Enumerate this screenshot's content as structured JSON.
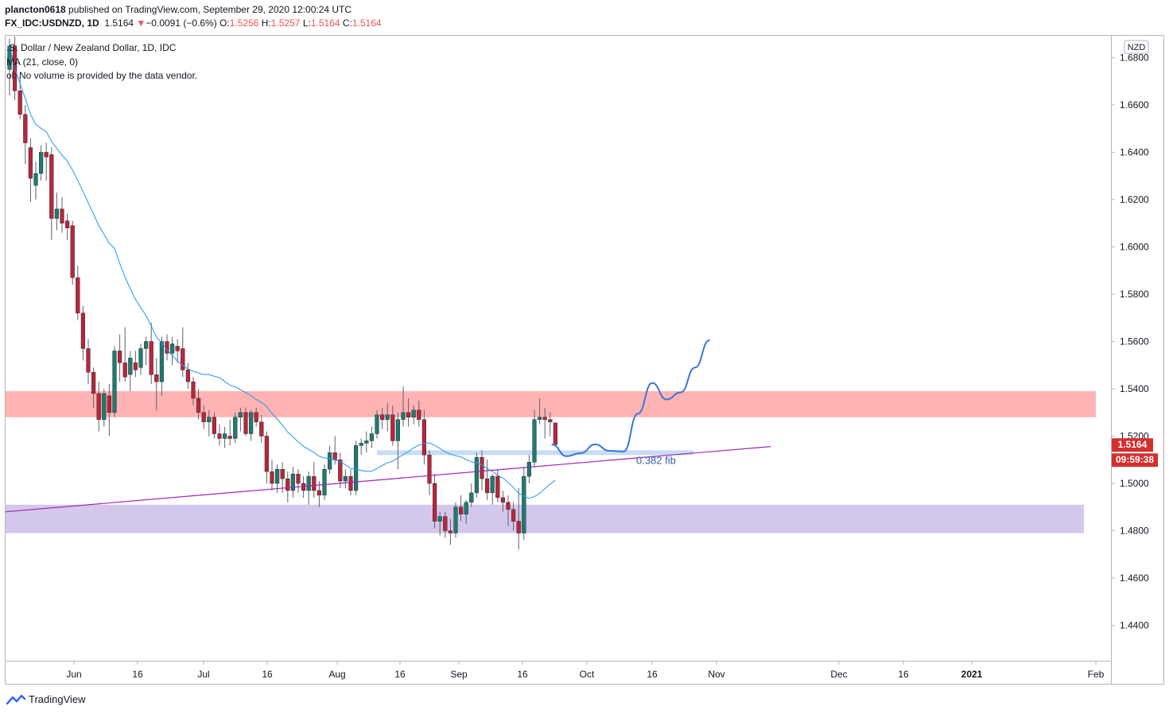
{
  "header": {
    "user": "plancton0618",
    "published_text": " published on TradingView.com, September 29, 2020 12:00:24 UTC",
    "symbol": "FX_IDC:USDNZD, 1D",
    "last": "1.5164",
    "change_arrow": "▼",
    "change": "−0.0091 (−0.6%)",
    "o_label": "O:",
    "o_value": "1.5256",
    "h_label": "H:",
    "h_value": "1.5257",
    "l_label": "L:",
    "l_value": "1.5164",
    "c_label": "C:",
    "c_value": "1.5164"
  },
  "legend": {
    "title": ".S. Dollar / New Zealand Dollar, 1D, IDC",
    "ma": "MA (21, close, 0)",
    "vol": "ol: No volume is provided by the data vendor."
  },
  "price_axis": {
    "currency": "NZD",
    "ticks": [
      "1.6800",
      "1.6600",
      "1.6400",
      "1.6200",
      "1.6000",
      "1.5800",
      "1.5600",
      "1.5400",
      "1.5200",
      "1.5000",
      "1.4800",
      "1.4600",
      "1.4400"
    ],
    "last_price_label": "1.5164",
    "countdown_label": "09:59:38"
  },
  "time_axis": {
    "ticks": [
      "Jun",
      "16",
      "Jul",
      "16",
      "Aug",
      "16",
      "Sep",
      "16",
      "Oct",
      "16",
      "Nov",
      "Dec",
      "16",
      "2021",
      "Feb"
    ]
  },
  "annotations": {
    "fib_label": "0.382 fib"
  },
  "colors": {
    "up": "#26a69a",
    "down": "#ef5350",
    "up_candle": "#1f7a70",
    "down_candle": "#b7263b",
    "ma": "#2196f3",
    "resistance_zone": "#ffb3b3",
    "support_zone": "#d4c7ec",
    "fib_zone": "#c8dcf6",
    "trendline": "#9c27b0",
    "projection": "#3a76d6"
  },
  "footer": {
    "brand": "TradingView"
  },
  "chart_data": {
    "type": "candlestick",
    "symbol": "USDNZD",
    "interval": "1D",
    "ylim": [
      1.43,
      1.69
    ],
    "y_ticks": [
      1.68,
      1.66,
      1.64,
      1.62,
      1.6,
      1.58,
      1.56,
      1.54,
      1.52,
      1.5,
      1.48,
      1.46,
      1.44
    ],
    "x_ticks": [
      "Jun",
      "16",
      "Jul",
      "16",
      "Aug",
      "16",
      "Sep",
      "16",
      "Oct",
      "16",
      "Nov",
      "Dec",
      "16",
      "2021",
      "Feb"
    ],
    "candles": [
      {
        "o": 1.675,
        "h": 1.688,
        "l": 1.664,
        "c": 1.685
      },
      {
        "o": 1.685,
        "h": 1.689,
        "l": 1.662,
        "c": 1.666
      },
      {
        "o": 1.666,
        "h": 1.672,
        "l": 1.654,
        "c": 1.656
      },
      {
        "o": 1.656,
        "h": 1.66,
        "l": 1.635,
        "c": 1.644
      },
      {
        "o": 1.642,
        "h": 1.646,
        "l": 1.619,
        "c": 1.629
      },
      {
        "o": 1.626,
        "h": 1.636,
        "l": 1.62,
        "c": 1.631
      },
      {
        "o": 1.631,
        "h": 1.643,
        "l": 1.628,
        "c": 1.64
      },
      {
        "o": 1.64,
        "h": 1.644,
        "l": 1.628,
        "c": 1.638
      },
      {
        "o": 1.639,
        "h": 1.642,
        "l": 1.603,
        "c": 1.612
      },
      {
        "o": 1.612,
        "h": 1.623,
        "l": 1.607,
        "c": 1.616
      },
      {
        "o": 1.616,
        "h": 1.621,
        "l": 1.606,
        "c": 1.61
      },
      {
        "o": 1.611,
        "h": 1.614,
        "l": 1.603,
        "c": 1.608
      },
      {
        "o": 1.609,
        "h": 1.611,
        "l": 1.584,
        "c": 1.587
      },
      {
        "o": 1.587,
        "h": 1.592,
        "l": 1.569,
        "c": 1.572
      },
      {
        "o": 1.572,
        "h": 1.575,
        "l": 1.552,
        "c": 1.557
      },
      {
        "o": 1.557,
        "h": 1.561,
        "l": 1.542,
        "c": 1.547
      },
      {
        "o": 1.547,
        "h": 1.549,
        "l": 1.532,
        "c": 1.538
      },
      {
        "o": 1.538,
        "h": 1.543,
        "l": 1.522,
        "c": 1.527
      },
      {
        "o": 1.527,
        "h": 1.54,
        "l": 1.524,
        "c": 1.538
      },
      {
        "o": 1.537,
        "h": 1.542,
        "l": 1.52,
        "c": 1.53
      },
      {
        "o": 1.53,
        "h": 1.558,
        "l": 1.528,
        "c": 1.556
      },
      {
        "o": 1.556,
        "h": 1.563,
        "l": 1.543,
        "c": 1.551
      },
      {
        "o": 1.551,
        "h": 1.566,
        "l": 1.543,
        "c": 1.545
      },
      {
        "o": 1.546,
        "h": 1.556,
        "l": 1.539,
        "c": 1.553
      },
      {
        "o": 1.551,
        "h": 1.556,
        "l": 1.545,
        "c": 1.548
      },
      {
        "o": 1.549,
        "h": 1.559,
        "l": 1.546,
        "c": 1.557
      },
      {
        "o": 1.557,
        "h": 1.562,
        "l": 1.55,
        "c": 1.56
      },
      {
        "o": 1.56,
        "h": 1.568,
        "l": 1.542,
        "c": 1.546
      },
      {
        "o": 1.546,
        "h": 1.553,
        "l": 1.531,
        "c": 1.543
      },
      {
        "o": 1.543,
        "h": 1.562,
        "l": 1.537,
        "c": 1.56
      },
      {
        "o": 1.56,
        "h": 1.563,
        "l": 1.552,
        "c": 1.555
      },
      {
        "o": 1.555,
        "h": 1.562,
        "l": 1.55,
        "c": 1.559
      },
      {
        "o": 1.558,
        "h": 1.561,
        "l": 1.551,
        "c": 1.556
      },
      {
        "o": 1.557,
        "h": 1.566,
        "l": 1.545,
        "c": 1.548
      },
      {
        "o": 1.548,
        "h": 1.551,
        "l": 1.54,
        "c": 1.543
      },
      {
        "o": 1.543,
        "h": 1.545,
        "l": 1.533,
        "c": 1.536
      },
      {
        "o": 1.536,
        "h": 1.54,
        "l": 1.527,
        "c": 1.53
      },
      {
        "o": 1.53,
        "h": 1.533,
        "l": 1.523,
        "c": 1.526
      },
      {
        "o": 1.526,
        "h": 1.531,
        "l": 1.52,
        "c": 1.528
      },
      {
        "o": 1.528,
        "h": 1.53,
        "l": 1.519,
        "c": 1.521
      },
      {
        "o": 1.521,
        "h": 1.525,
        "l": 1.516,
        "c": 1.519
      },
      {
        "o": 1.519,
        "h": 1.524,
        "l": 1.515,
        "c": 1.521
      },
      {
        "o": 1.52,
        "h": 1.527,
        "l": 1.516,
        "c": 1.519
      },
      {
        "o": 1.519,
        "h": 1.53,
        "l": 1.517,
        "c": 1.528
      },
      {
        "o": 1.528,
        "h": 1.532,
        "l": 1.522,
        "c": 1.53
      },
      {
        "o": 1.53,
        "h": 1.532,
        "l": 1.52,
        "c": 1.521
      },
      {
        "o": 1.521,
        "h": 1.531,
        "l": 1.518,
        "c": 1.53
      },
      {
        "o": 1.53,
        "h": 1.532,
        "l": 1.524,
        "c": 1.526
      },
      {
        "o": 1.526,
        "h": 1.529,
        "l": 1.517,
        "c": 1.52
      },
      {
        "o": 1.52,
        "h": 1.522,
        "l": 1.5,
        "c": 1.505
      },
      {
        "o": 1.505,
        "h": 1.51,
        "l": 1.497,
        "c": 1.5
      },
      {
        "o": 1.5,
        "h": 1.508,
        "l": 1.496,
        "c": 1.506
      },
      {
        "o": 1.506,
        "h": 1.509,
        "l": 1.496,
        "c": 1.502
      },
      {
        "o": 1.502,
        "h": 1.505,
        "l": 1.492,
        "c": 1.497
      },
      {
        "o": 1.497,
        "h": 1.507,
        "l": 1.494,
        "c": 1.504
      },
      {
        "o": 1.504,
        "h": 1.506,
        "l": 1.496,
        "c": 1.5
      },
      {
        "o": 1.5,
        "h": 1.503,
        "l": 1.494,
        "c": 1.497
      },
      {
        "o": 1.497,
        "h": 1.505,
        "l": 1.491,
        "c": 1.503
      },
      {
        "o": 1.503,
        "h": 1.509,
        "l": 1.494,
        "c": 1.497
      },
      {
        "o": 1.497,
        "h": 1.501,
        "l": 1.49,
        "c": 1.495
      },
      {
        "o": 1.495,
        "h": 1.508,
        "l": 1.493,
        "c": 1.506
      },
      {
        "o": 1.506,
        "h": 1.516,
        "l": 1.504,
        "c": 1.513
      },
      {
        "o": 1.513,
        "h": 1.52,
        "l": 1.508,
        "c": 1.51
      },
      {
        "o": 1.51,
        "h": 1.513,
        "l": 1.498,
        "c": 1.501
      },
      {
        "o": 1.501,
        "h": 1.506,
        "l": 1.498,
        "c": 1.503
      },
      {
        "o": 1.503,
        "h": 1.506,
        "l": 1.495,
        "c": 1.497
      },
      {
        "o": 1.497,
        "h": 1.518,
        "l": 1.495,
        "c": 1.516
      },
      {
        "o": 1.516,
        "h": 1.519,
        "l": 1.512,
        "c": 1.517
      },
      {
        "o": 1.517,
        "h": 1.522,
        "l": 1.513,
        "c": 1.518
      },
      {
        "o": 1.518,
        "h": 1.524,
        "l": 1.515,
        "c": 1.521
      },
      {
        "o": 1.521,
        "h": 1.531,
        "l": 1.519,
        "c": 1.529
      },
      {
        "o": 1.529,
        "h": 1.532,
        "l": 1.523,
        "c": 1.527
      },
      {
        "o": 1.527,
        "h": 1.534,
        "l": 1.522,
        "c": 1.529
      },
      {
        "o": 1.529,
        "h": 1.533,
        "l": 1.516,
        "c": 1.518
      },
      {
        "o": 1.518,
        "h": 1.53,
        "l": 1.506,
        "c": 1.527
      },
      {
        "o": 1.527,
        "h": 1.541,
        "l": 1.524,
        "c": 1.53
      },
      {
        "o": 1.53,
        "h": 1.536,
        "l": 1.524,
        "c": 1.528
      },
      {
        "o": 1.528,
        "h": 1.533,
        "l": 1.525,
        "c": 1.531
      },
      {
        "o": 1.531,
        "h": 1.535,
        "l": 1.524,
        "c": 1.527
      },
      {
        "o": 1.527,
        "h": 1.531,
        "l": 1.508,
        "c": 1.512
      },
      {
        "o": 1.512,
        "h": 1.514,
        "l": 1.495,
        "c": 1.5
      },
      {
        "o": 1.5,
        "h": 1.504,
        "l": 1.481,
        "c": 1.484
      },
      {
        "o": 1.484,
        "h": 1.488,
        "l": 1.478,
        "c": 1.486
      },
      {
        "o": 1.486,
        "h": 1.488,
        "l": 1.477,
        "c": 1.48
      },
      {
        "o": 1.48,
        "h": 1.485,
        "l": 1.474,
        "c": 1.479
      },
      {
        "o": 1.479,
        "h": 1.492,
        "l": 1.477,
        "c": 1.49
      },
      {
        "o": 1.49,
        "h": 1.495,
        "l": 1.484,
        "c": 1.487
      },
      {
        "o": 1.487,
        "h": 1.493,
        "l": 1.483,
        "c": 1.492
      },
      {
        "o": 1.492,
        "h": 1.5,
        "l": 1.49,
        "c": 1.496
      },
      {
        "o": 1.496,
        "h": 1.513,
        "l": 1.494,
        "c": 1.511
      },
      {
        "o": 1.511,
        "h": 1.514,
        "l": 1.497,
        "c": 1.502
      },
      {
        "o": 1.502,
        "h": 1.51,
        "l": 1.493,
        "c": 1.496
      },
      {
        "o": 1.496,
        "h": 1.504,
        "l": 1.491,
        "c": 1.503
      },
      {
        "o": 1.503,
        "h": 1.506,
        "l": 1.492,
        "c": 1.494
      },
      {
        "o": 1.494,
        "h": 1.497,
        "l": 1.488,
        "c": 1.492
      },
      {
        "o": 1.492,
        "h": 1.495,
        "l": 1.482,
        "c": 1.489
      },
      {
        "o": 1.489,
        "h": 1.492,
        "l": 1.48,
        "c": 1.484
      },
      {
        "o": 1.484,
        "h": 1.498,
        "l": 1.472,
        "c": 1.479
      },
      {
        "o": 1.479,
        "h": 1.507,
        "l": 1.476,
        "c": 1.503
      },
      {
        "o": 1.503,
        "h": 1.512,
        "l": 1.5,
        "c": 1.509
      },
      {
        "o": 1.509,
        "h": 1.531,
        "l": 1.507,
        "c": 1.527
      },
      {
        "o": 1.527,
        "h": 1.536,
        "l": 1.525,
        "c": 1.528
      },
      {
        "o": 1.528,
        "h": 1.532,
        "l": 1.519,
        "c": 1.527
      },
      {
        "o": 1.527,
        "h": 1.53,
        "l": 1.52,
        "c": 1.526
      },
      {
        "o": 1.5256,
        "h": 1.5257,
        "l": 1.5164,
        "c": 1.5164
      }
    ],
    "ma": {
      "name": "MA (21, close, 0)",
      "period": 21
    },
    "zones": [
      {
        "from": 1.528,
        "to": 1.539
      },
      {
        "from": 1.479,
        "to": 1.491
      },
      {
        "from": 1.512,
        "to": 1.514
      }
    ],
    "trendline": [
      {
        "bar": -4,
        "price": 1.488
      },
      {
        "bar": 145,
        "price": 1.5156
      }
    ],
    "projection": [
      1.5164,
      1.5115,
      1.5128,
      1.5165,
      1.5138,
      1.5135,
      1.5295,
      1.5425,
      1.5355,
      1.5385,
      1.549,
      1.5605
    ],
    "last_price": 1.5164
  }
}
